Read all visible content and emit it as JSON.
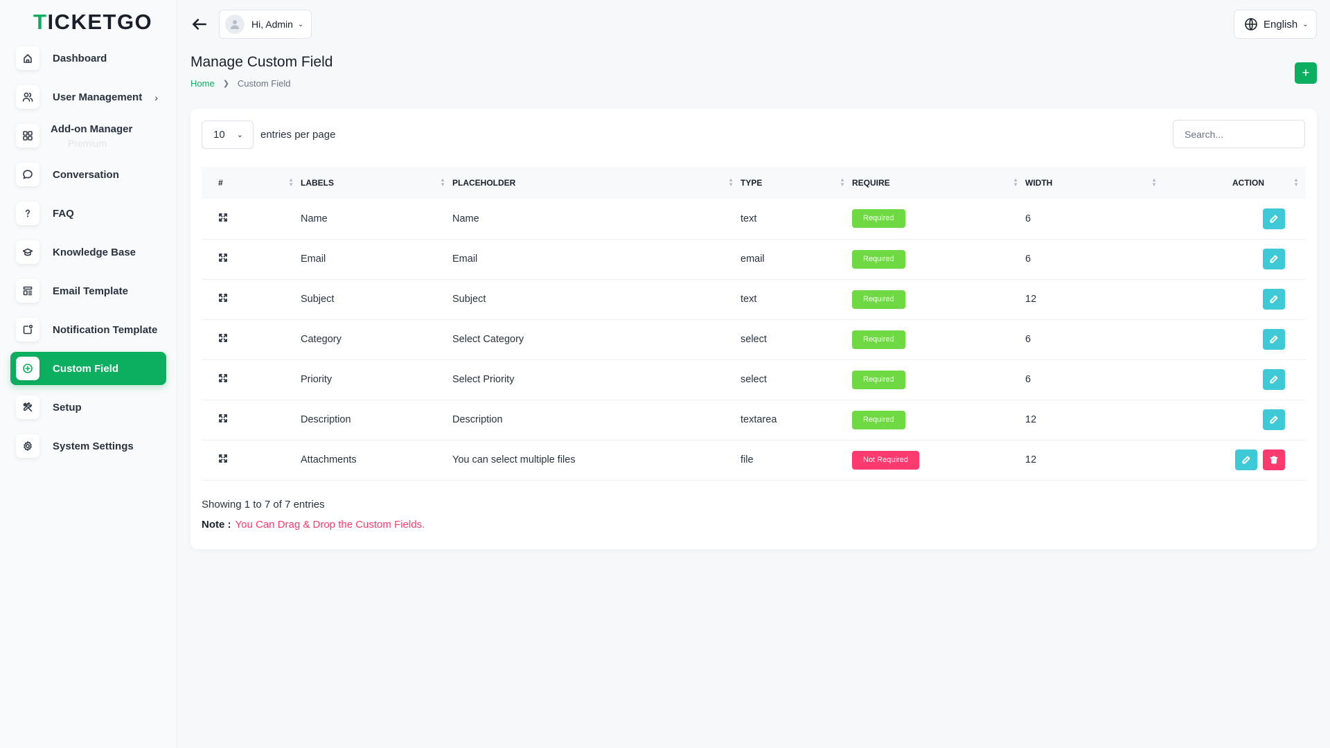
{
  "brand": {
    "prefix": "T",
    "rest": "ICKETGO",
    "accent_color": "#0caf60"
  },
  "sidebar": {
    "items": [
      {
        "label": "Dashboard",
        "icon": "home-icon"
      },
      {
        "label": "User Management",
        "icon": "users-icon",
        "chevron": "›"
      },
      {
        "label": "Add-on Manager",
        "sub": "Premium",
        "icon": "grid-icon"
      },
      {
        "label": "Conversation",
        "icon": "chat-icon"
      },
      {
        "label": "FAQ",
        "icon": "question-icon"
      },
      {
        "label": "Knowledge Base",
        "icon": "graduation-cap-icon"
      },
      {
        "label": "Email Template",
        "icon": "template-icon"
      },
      {
        "label": "Notification Template",
        "icon": "notification-icon"
      },
      {
        "label": "Custom Field",
        "icon": "plus-circle-icon",
        "active": true
      },
      {
        "label": "Setup",
        "icon": "tools-icon"
      },
      {
        "label": "System Settings",
        "icon": "gear-icon"
      }
    ]
  },
  "header": {
    "user_label": "Hi, Admin",
    "language": "English"
  },
  "page": {
    "title": "Manage Custom Field",
    "breadcrumb_home": "Home",
    "breadcrumb_current": "Custom Field",
    "add_label": "+"
  },
  "table_controls": {
    "per_page": "10",
    "per_page_label": "entries per page",
    "search_placeholder": "Search..."
  },
  "table": {
    "headers": [
      "#",
      "LABELS",
      "PLACEHOLDER",
      "TYPE",
      "REQUIRE",
      "WIDTH",
      "ACTION"
    ],
    "rows": [
      {
        "label": "Name",
        "placeholder": "Name",
        "type": "text",
        "require": "Required",
        "width": "6",
        "deletable": false
      },
      {
        "label": "Email",
        "placeholder": "Email",
        "type": "email",
        "require": "Required",
        "width": "6",
        "deletable": false
      },
      {
        "label": "Subject",
        "placeholder": "Subject",
        "type": "text",
        "require": "Required",
        "width": "12",
        "deletable": false
      },
      {
        "label": "Category",
        "placeholder": "Select Category",
        "type": "select",
        "require": "Required",
        "width": "6",
        "deletable": false
      },
      {
        "label": "Priority",
        "placeholder": "Select Priority",
        "type": "select",
        "require": "Required",
        "width": "6",
        "deletable": false
      },
      {
        "label": "Description",
        "placeholder": "Description",
        "type": "textarea",
        "require": "Required",
        "width": "12",
        "deletable": false
      },
      {
        "label": "Attachments",
        "placeholder": "You can select multiple files",
        "type": "file",
        "require": "Not Required",
        "width": "12",
        "deletable": true
      }
    ]
  },
  "footer": {
    "showing": "Showing 1 to 7 of 7 entries",
    "note_label": "Note :",
    "note_text": "You Can Drag & Drop the Custom Fields."
  }
}
